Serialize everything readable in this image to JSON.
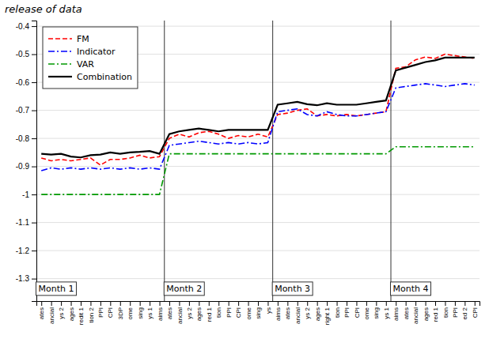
{
  "chart_data": {
    "type": "line",
    "title": "release of data",
    "categories": [
      "ates",
      "ancial",
      "ys 2",
      "ages",
      "redit 1",
      "tion 2",
      "PPI",
      "CPI",
      "3DP",
      "ome",
      "sing",
      "ys 1",
      "aims",
      "ates",
      "ancial",
      "ys 2",
      "ages",
      "red 1",
      "tion",
      "PPI",
      "CPI",
      "ome",
      "sing",
      "ys",
      "aims",
      "ates",
      "ancial",
      "ys 2",
      "ages",
      "right 1",
      "tion",
      "PPI",
      "CPI",
      "ome",
      "sing",
      "ys 1",
      "aims",
      "ates",
      "ancial",
      "ages",
      "red 1",
      "tion",
      "PPI",
      "ed 2",
      "CPI"
    ],
    "series": [
      {
        "name": "FM",
        "color": "#ff0000",
        "line_style": "dashed",
        "values": [
          -0.87,
          -0.88,
          -0.875,
          -0.88,
          -0.875,
          -0.87,
          -0.895,
          -0.875,
          -0.875,
          -0.87,
          -0.86,
          -0.87,
          -0.865,
          -0.8,
          -0.785,
          -0.795,
          -0.78,
          -0.775,
          -0.785,
          -0.8,
          -0.79,
          -0.795,
          -0.785,
          -0.795,
          -0.715,
          -0.71,
          -0.7,
          -0.695,
          -0.72,
          -0.715,
          -0.72,
          -0.715,
          -0.72,
          -0.715,
          -0.71,
          -0.705,
          -0.55,
          -0.545,
          -0.52,
          -0.51,
          -0.515,
          -0.5,
          -0.505,
          -0.51,
          -0.515
        ]
      },
      {
        "name": "Indicator",
        "color": "#0000ff",
        "line_style": "dashdot",
        "values": [
          -0.915,
          -0.905,
          -0.91,
          -0.905,
          -0.91,
          -0.905,
          -0.91,
          -0.905,
          -0.91,
          -0.905,
          -0.91,
          -0.905,
          -0.91,
          -0.825,
          -0.82,
          -0.815,
          -0.81,
          -0.815,
          -0.82,
          -0.815,
          -0.82,
          -0.815,
          -0.82,
          -0.815,
          -0.705,
          -0.7,
          -0.695,
          -0.715,
          -0.72,
          -0.705,
          -0.715,
          -0.72,
          -0.72,
          -0.715,
          -0.71,
          -0.705,
          -0.62,
          -0.615,
          -0.61,
          -0.605,
          -0.61,
          -0.615,
          -0.61,
          -0.605,
          -0.61
        ]
      },
      {
        "name": "VAR",
        "color": "#009900",
        "line_style": "dashdot",
        "values": [
          -1.0,
          -1.0,
          -1.0,
          -1.0,
          -1.0,
          -1.0,
          -1.0,
          -1.0,
          -1.0,
          -1.0,
          -1.0,
          -1.0,
          -1.0,
          -0.855,
          -0.855,
          -0.855,
          -0.855,
          -0.855,
          -0.855,
          -0.855,
          -0.855,
          -0.855,
          -0.855,
          -0.855,
          -0.855,
          -0.855,
          -0.855,
          -0.855,
          -0.855,
          -0.855,
          -0.855,
          -0.855,
          -0.855,
          -0.855,
          -0.855,
          -0.855,
          -0.83,
          -0.83,
          -0.83,
          -0.83,
          -0.83,
          -0.83,
          -0.83,
          -0.83,
          -0.83
        ]
      },
      {
        "name": "Combination",
        "color": "#000000",
        "line_style": "solid",
        "values": [
          -0.855,
          -0.858,
          -0.855,
          -0.865,
          -0.868,
          -0.86,
          -0.858,
          -0.85,
          -0.855,
          -0.85,
          -0.848,
          -0.845,
          -0.855,
          -0.785,
          -0.775,
          -0.77,
          -0.765,
          -0.77,
          -0.775,
          -0.77,
          -0.77,
          -0.77,
          -0.77,
          -0.77,
          -0.68,
          -0.675,
          -0.67,
          -0.678,
          -0.682,
          -0.675,
          -0.68,
          -0.68,
          -0.68,
          -0.675,
          -0.67,
          -0.665,
          -0.558,
          -0.548,
          -0.538,
          -0.528,
          -0.522,
          -0.512,
          -0.512,
          -0.512,
          -0.512
        ]
      }
    ],
    "ylim": [
      -1.38,
      -0.38
    ],
    "yticks": [
      -0.4,
      -0.5,
      -0.6,
      -0.7,
      -0.8,
      -0.9,
      -1,
      -1.1,
      -1.2,
      -1.3
    ],
    "grid": true,
    "legend": "upper left",
    "annotations": [
      {
        "text": "Month 1",
        "x": 0
      },
      {
        "text": "Month 2",
        "x": 13
      },
      {
        "text": "Month 3",
        "x": 24
      },
      {
        "text": "Month 4",
        "x": 36
      }
    ]
  }
}
